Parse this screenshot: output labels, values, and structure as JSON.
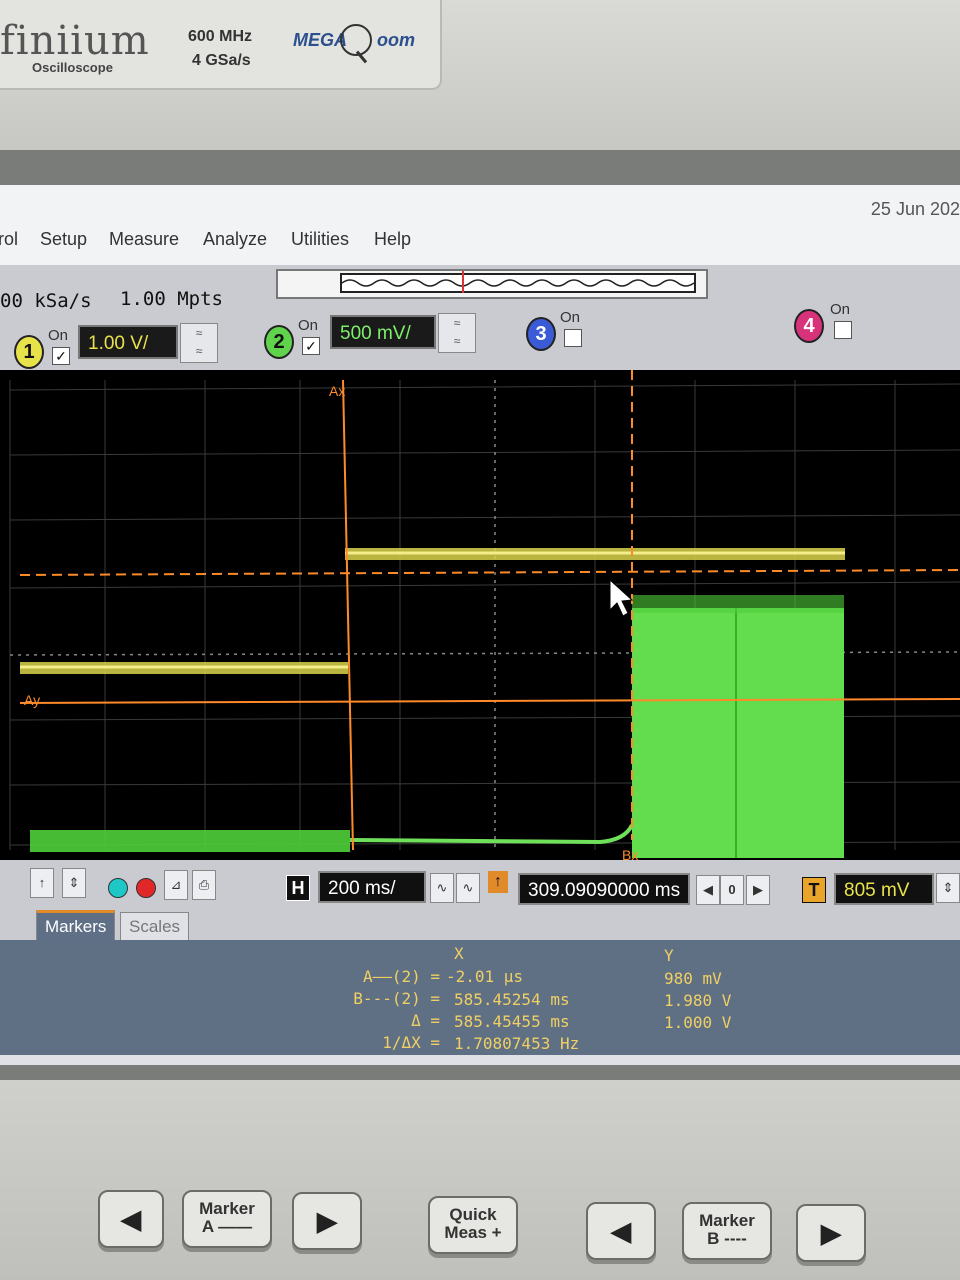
{
  "bezel": {
    "brand": "finiium",
    "brand_sub": "Oscilloscope",
    "bandwidth": "600 MHz",
    "sample_rate_max": "4 GSa/s",
    "megazoom": "MEGA",
    "megazoom_suffix": "oom"
  },
  "menu": {
    "items": [
      "rol",
      "Setup",
      "Measure",
      "Analyze",
      "Utilities",
      "Help"
    ],
    "date": "25 Jun 202"
  },
  "acquisition": {
    "sample_rate": "00 kSa/s",
    "memory_depth": "1.00 Mpts"
  },
  "channels": [
    {
      "number": "1",
      "on_label": "On",
      "checked": "✓",
      "scale": "1.00 V/",
      "color": "#e8e24a"
    },
    {
      "number": "2",
      "on_label": "On",
      "checked": "✓",
      "scale": "500 mV/",
      "color": "#5fd34b"
    },
    {
      "number": "3",
      "on_label": "On",
      "checked": "",
      "color": "#3b5bd6"
    },
    {
      "number": "4",
      "on_label": "On",
      "checked": "",
      "color": "#d8327a"
    }
  ],
  "waveform": {
    "marker_ax_label": "Ax",
    "marker_bx_label": "Bx",
    "marker_ay_label": "Ay"
  },
  "timebase": {
    "h_label": "H",
    "scale": "200 ms/",
    "position": "309.09090000 ms",
    "zero": "0",
    "t_label": "T",
    "trigger_level": "805 mV"
  },
  "tabs": [
    "Markers",
    "Scales"
  ],
  "markers": {
    "x_header": "X",
    "y_header": "Y",
    "rows": [
      {
        "label": "A——(2) =",
        "x": "-2.01 µs",
        "y": "980 mV"
      },
      {
        "label": "B---(2) =",
        "x": "585.45254 ms",
        "y": "1.980 V"
      },
      {
        "label": "Δ =",
        "x": "585.45455 ms",
        "y": "1.000 V"
      },
      {
        "label": "1/ΔX =",
        "x": "1.70807453 Hz",
        "y": ""
      }
    ]
  },
  "front_panel": {
    "marker_a": "Marker",
    "marker_a_sub": "A ——",
    "quick_meas": "Quick",
    "quick_meas_sub": "Meas +",
    "marker_b": "Marker",
    "marker_b_sub": "B ----"
  }
}
